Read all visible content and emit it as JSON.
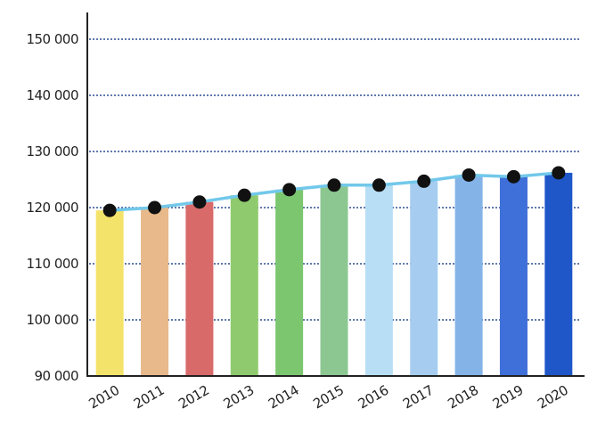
{
  "chart_data": {
    "type": "bar",
    "categories": [
      "2010",
      "2011",
      "2012",
      "2013",
      "2014",
      "2015",
      "2016",
      "2017",
      "2018",
      "2019",
      "2020"
    ],
    "values": [
      119500,
      120000,
      121000,
      122200,
      123200,
      124000,
      124000,
      124700,
      125800,
      125500,
      126200
    ],
    "bar_colors": [
      "#f4e36b",
      "#e8b98a",
      "#d86a6a",
      "#8fcb6e",
      "#7cc66f",
      "#8cc792",
      "#b7def4",
      "#a6cdf0",
      "#84b3e8",
      "#3f6fd8",
      "#1f57c8"
    ],
    "line": {
      "values": [
        119500,
        120000,
        121000,
        122200,
        123200,
        124000,
        124000,
        124700,
        125800,
        125500,
        126200
      ],
      "color": "#72c8ea",
      "marker_color": "#111111"
    },
    "y_ticks": [
      {
        "value": 90000,
        "label": "90 000"
      },
      {
        "value": 100000,
        "label": "100 000"
      },
      {
        "value": 110000,
        "label": "110 000"
      },
      {
        "value": 120000,
        "label": "120 000"
      },
      {
        "value": 130000,
        "label": "130 000"
      },
      {
        "value": 140000,
        "label": "140 000"
      },
      {
        "value": 150000,
        "label": "150 000"
      }
    ],
    "ylim": [
      90000,
      150000
    ],
    "grid": true,
    "gridline_color": "#2b4f8f",
    "axis_color": "#222222"
  }
}
